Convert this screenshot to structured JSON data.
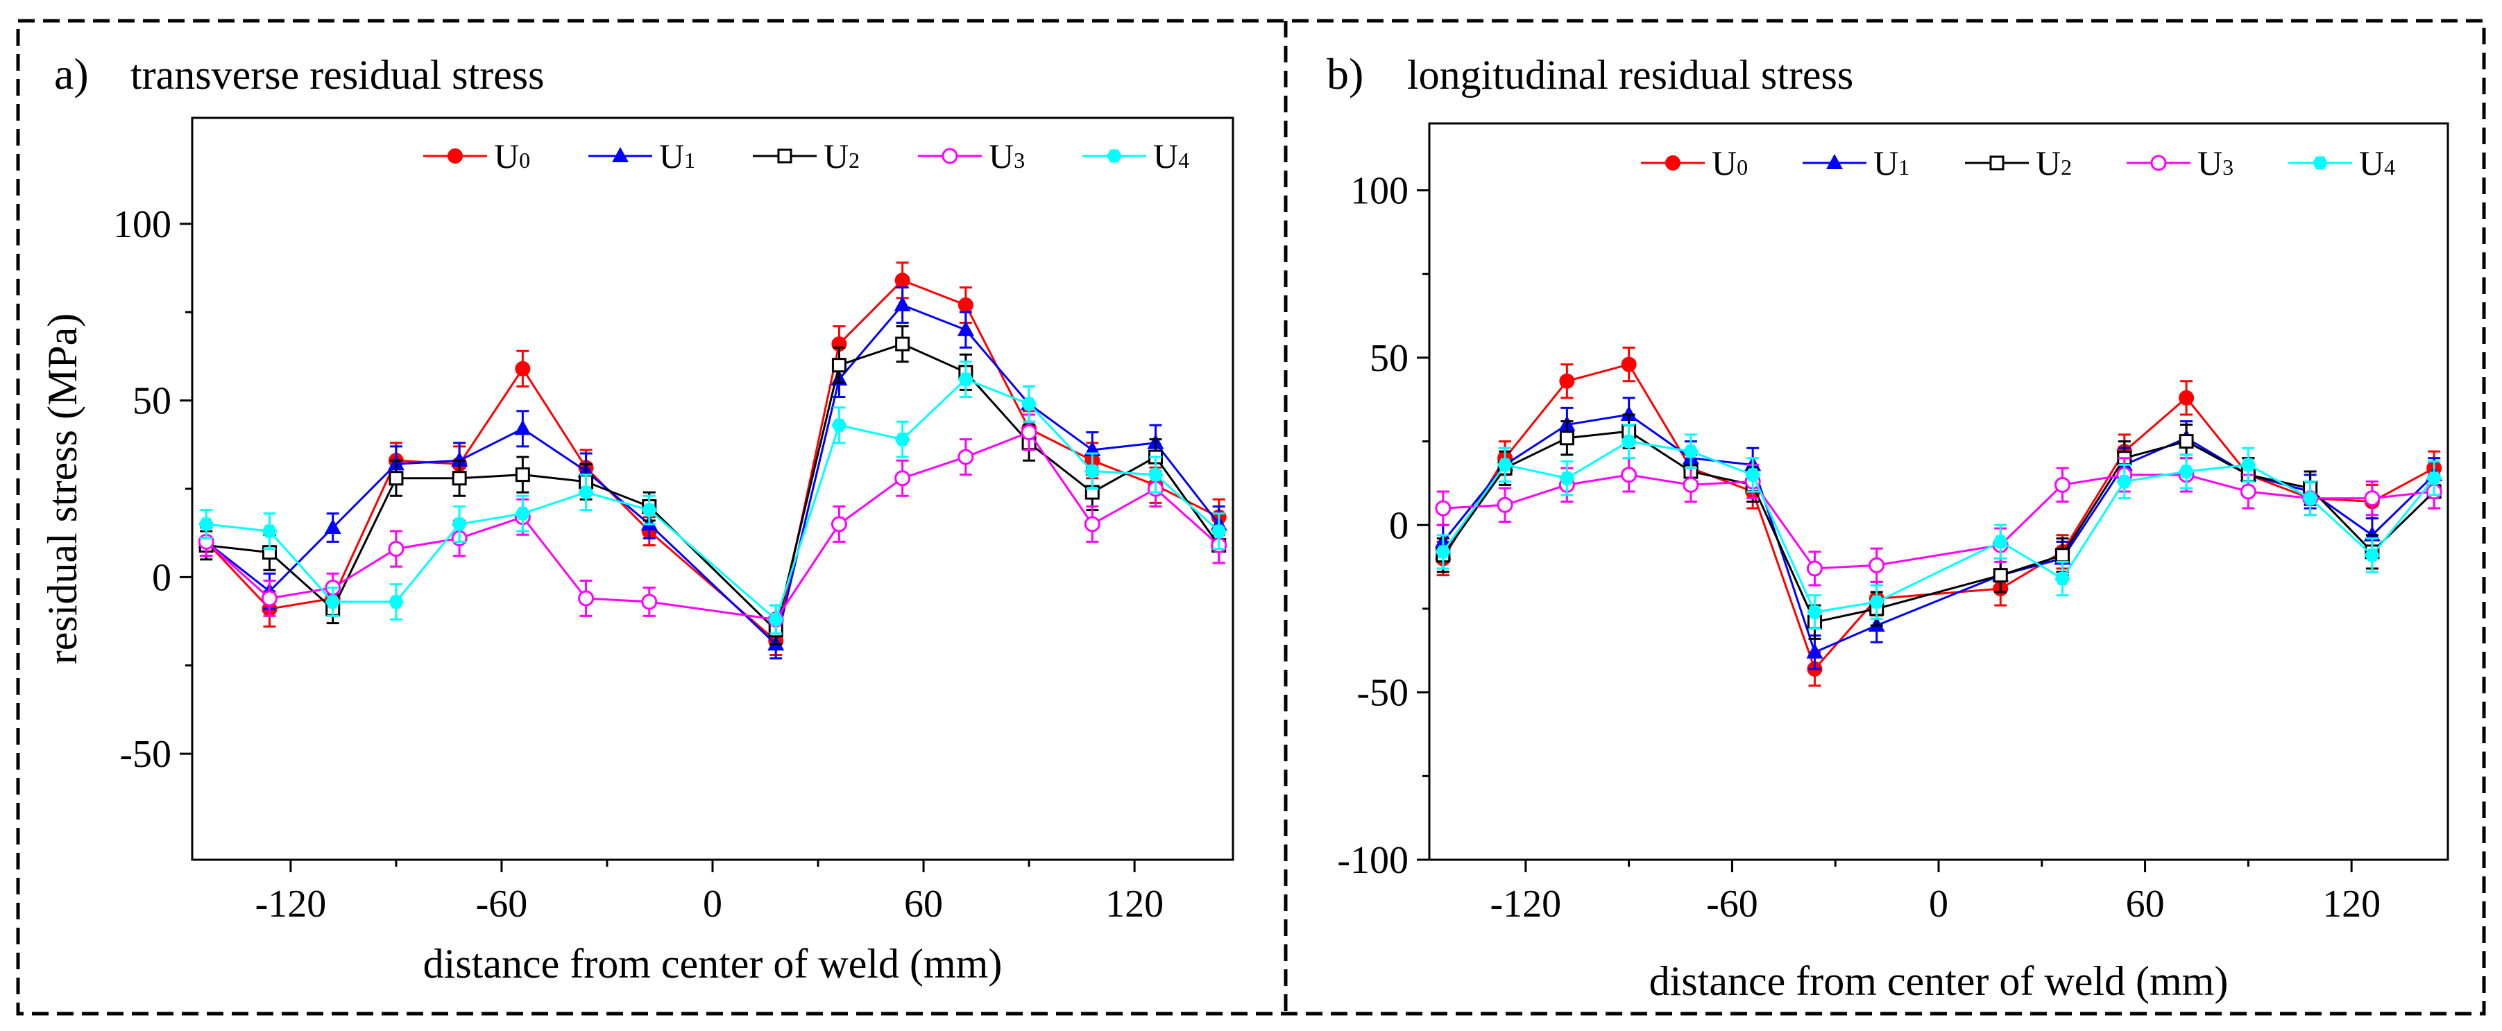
{
  "chart_data": [
    {
      "type": "line",
      "panel_label": "a)",
      "title": "transverse residual stress",
      "xlabel": "distance from center of weld (mm)",
      "ylabel": "residual stress (MPa)",
      "xlim": [
        -148,
        148
      ],
      "ylim": [
        -80,
        130
      ],
      "xticks": [
        -120,
        -60,
        0,
        60,
        120
      ],
      "yticks": [
        -50,
        0,
        50,
        100
      ],
      "grid": false,
      "legend_position": "top",
      "series": [
        {
          "name": "U0",
          "sub": "0",
          "color": "#ff0000",
          "marker": "circle-filled",
          "x": [
            -144,
            -126,
            -108,
            -90,
            -72,
            -54,
            -36,
            -18,
            18,
            36,
            54,
            72,
            90,
            108,
            126,
            144
          ],
          "y": [
            10,
            -9,
            -6,
            33,
            32,
            59,
            31,
            13,
            -18,
            66,
            84,
            77,
            42,
            33,
            26,
            17
          ],
          "err": [
            4,
            5,
            4,
            5,
            5,
            5,
            5,
            4,
            4,
            5,
            5,
            5,
            5,
            5,
            5,
            5
          ]
        },
        {
          "name": "U1",
          "sub": "1",
          "color": "#0000ff",
          "marker": "triangle-filled",
          "x": [
            -144,
            -126,
            -108,
            -90,
            -72,
            -54,
            -36,
            -18,
            18,
            36,
            54,
            72,
            90,
            108,
            126,
            144
          ],
          "y": [
            10,
            -4,
            14,
            32,
            33,
            42,
            30,
            15,
            -19,
            56,
            77,
            70,
            49,
            36,
            38,
            15
          ],
          "err": [
            4,
            5,
            4,
            5,
            5,
            5,
            5,
            4,
            4,
            5,
            5,
            5,
            5,
            5,
            5,
            5
          ]
        },
        {
          "name": "U2",
          "sub": "2",
          "color": "#000000",
          "marker": "square-open",
          "x": [
            -144,
            -126,
            -108,
            -90,
            -72,
            -54,
            -36,
            -18,
            18,
            36,
            54,
            72,
            90,
            108,
            126,
            144
          ],
          "y": [
            9,
            7,
            -9,
            28,
            28,
            29,
            27,
            20,
            -15,
            60,
            66,
            58,
            38,
            24,
            34,
            9
          ],
          "err": [
            4,
            5,
            4,
            5,
            5,
            5,
            5,
            4,
            4,
            5,
            5,
            5,
            5,
            5,
            5,
            5
          ]
        },
        {
          "name": "U3",
          "sub": "3",
          "color": "#ff00ff",
          "marker": "circle-open",
          "x": [
            -144,
            -126,
            -108,
            -90,
            -72,
            -54,
            -36,
            -18,
            18,
            36,
            54,
            72,
            90,
            108,
            126,
            144
          ],
          "y": [
            10,
            -6,
            -3,
            8,
            11,
            17,
            -6,
            -7,
            -12,
            15,
            28,
            34,
            41,
            15,
            25,
            9
          ],
          "err": [
            4,
            5,
            4,
            5,
            5,
            5,
            5,
            4,
            4,
            5,
            5,
            5,
            5,
            5,
            5,
            5
          ]
        },
        {
          "name": "U4",
          "sub": "4",
          "color": "#00ffff",
          "marker": "hexagon-filled",
          "x": [
            -144,
            -126,
            -108,
            -90,
            -72,
            -54,
            -36,
            -18,
            18,
            36,
            54,
            72,
            90,
            108,
            126,
            144
          ],
          "y": [
            15,
            13,
            -7,
            -7,
            15,
            18,
            24,
            19,
            -12,
            43,
            39,
            56,
            49,
            30,
            29,
            13
          ],
          "err": [
            4,
            5,
            4,
            5,
            5,
            5,
            5,
            4,
            4,
            5,
            5,
            5,
            5,
            5,
            5,
            5
          ]
        }
      ]
    },
    {
      "type": "line",
      "panel_label": "b)",
      "title": "longitudinal residual stress",
      "xlabel": "distance from center of weld (mm)",
      "ylabel": "",
      "xlim": [
        -148,
        148
      ],
      "ylim": [
        -100,
        120
      ],
      "xticks": [
        -120,
        -60,
        0,
        60,
        120
      ],
      "yticks": [
        -100,
        -50,
        0,
        50,
        100
      ],
      "grid": false,
      "legend_position": "top",
      "series": [
        {
          "name": "U0",
          "sub": "0",
          "color": "#ff0000",
          "marker": "circle-filled",
          "x": [
            -144,
            -126,
            -108,
            -90,
            -72,
            -54,
            -36,
            -18,
            18,
            36,
            54,
            72,
            90,
            108,
            126,
            144
          ],
          "y": [
            -10,
            20,
            43,
            48,
            17,
            10,
            -43,
            -22,
            -19,
            -8,
            22,
            38,
            15,
            8,
            7,
            17
          ],
          "err": [
            5,
            5,
            5,
            5,
            5,
            5,
            5,
            5,
            5,
            5,
            5,
            5,
            5,
            5,
            5,
            5
          ]
        },
        {
          "name": "U1",
          "sub": "1",
          "color": "#0000ff",
          "marker": "triangle-filled",
          "x": [
            -144,
            -126,
            -108,
            -90,
            -72,
            -54,
            -36,
            -18,
            18,
            36,
            54,
            72,
            90,
            108,
            126,
            144
          ],
          "y": [
            -5,
            18,
            30,
            33,
            20,
            18,
            -38,
            -30,
            -15,
            -10,
            18,
            26,
            15,
            10,
            -3,
            15
          ],
          "err": [
            5,
            5,
            5,
            5,
            5,
            5,
            5,
            5,
            5,
            5,
            5,
            5,
            5,
            5,
            5,
            5
          ]
        },
        {
          "name": "U2",
          "sub": "2",
          "color": "#000000",
          "marker": "square-open",
          "x": [
            -144,
            -126,
            -108,
            -90,
            -72,
            -54,
            -36,
            -18,
            18,
            36,
            54,
            72,
            90,
            108,
            126,
            144
          ],
          "y": [
            -9,
            17,
            26,
            28,
            16,
            12,
            -29,
            -25,
            -15,
            -9,
            20,
            25,
            15,
            11,
            -8,
            10
          ],
          "err": [
            5,
            5,
            5,
            5,
            5,
            5,
            5,
            5,
            5,
            5,
            5,
            5,
            5,
            5,
            5,
            5
          ]
        },
        {
          "name": "U3",
          "sub": "3",
          "color": "#ff00ff",
          "marker": "circle-open",
          "x": [
            -144,
            -126,
            -108,
            -90,
            -72,
            -54,
            -36,
            -18,
            18,
            36,
            54,
            72,
            90,
            108,
            126,
            144
          ],
          "y": [
            5,
            6,
            12,
            15,
            12,
            13,
            -13,
            -12,
            -6,
            12,
            15,
            15,
            10,
            8,
            8,
            10
          ],
          "err": [
            5,
            5,
            5,
            5,
            5,
            5,
            5,
            5,
            5,
            5,
            5,
            5,
            5,
            5,
            5,
            5
          ]
        },
        {
          "name": "U4",
          "sub": "4",
          "color": "#00ffff",
          "marker": "hexagon-filled",
          "x": [
            -144,
            -126,
            -108,
            -90,
            -72,
            -54,
            -36,
            -18,
            18,
            36,
            54,
            72,
            90,
            108,
            126,
            144
          ],
          "y": [
            -8,
            18,
            14,
            25,
            22,
            15,
            -26,
            -23,
            -5,
            -16,
            13,
            16,
            18,
            8,
            -9,
            14
          ],
          "err": [
            5,
            5,
            5,
            5,
            5,
            5,
            5,
            5,
            5,
            5,
            5,
            5,
            5,
            5,
            5,
            5
          ]
        }
      ]
    }
  ]
}
